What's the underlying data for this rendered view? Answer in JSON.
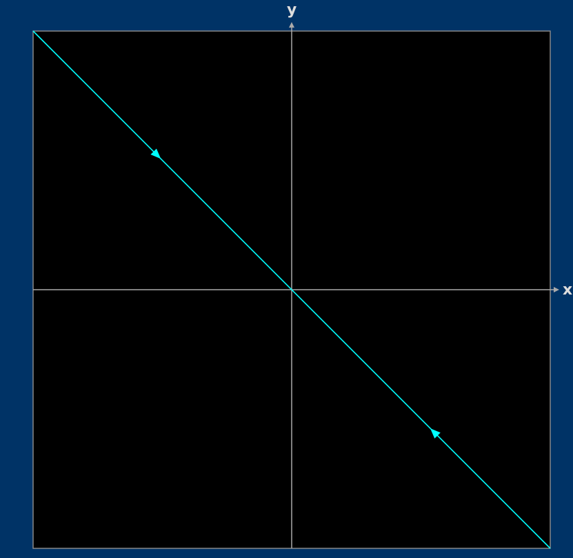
{
  "diagram": {
    "type": "phase-portrait",
    "x_axis_label": "x",
    "y_axis_label": "y",
    "x_range": [
      -1,
      1
    ],
    "y_range": [
      -1,
      1
    ],
    "trajectory": {
      "points": [
        [
          -1,
          1
        ],
        [
          1,
          -1
        ]
      ],
      "direction": "toward-origin",
      "arrows_at": [
        [
          -0.52,
          0.52
        ],
        [
          0.55,
          -0.55
        ]
      ]
    }
  },
  "colors": {
    "background": "#003366",
    "plot_area": "#000000",
    "frame": "#888888",
    "axes": "#aaaaaa",
    "label": "#dddddd",
    "trajectory": "#00ffff"
  }
}
